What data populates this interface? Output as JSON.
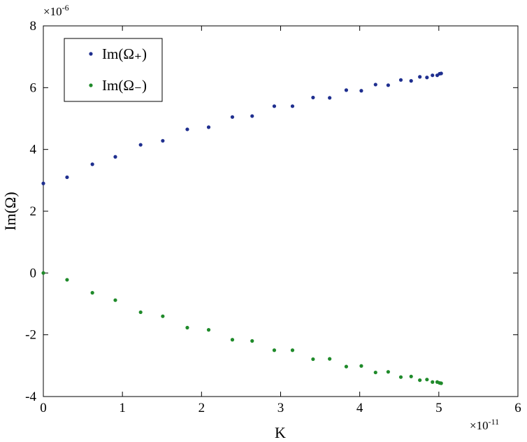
{
  "chart_data": {
    "type": "scatter",
    "title": "",
    "xlabel": "K",
    "ylabel": "Im(Ω)",
    "x_multiplier": "×10",
    "x_exponent": "-11",
    "y_multiplier": "×10",
    "y_exponent": "-6",
    "xlim": [
      0,
      6
    ],
    "ylim": [
      -4,
      8
    ],
    "x_ticks": [
      "0",
      "1",
      "2",
      "3",
      "4",
      "5",
      "6"
    ],
    "y_ticks": [
      "-4",
      "-2",
      "0",
      "2",
      "4",
      "6",
      "8"
    ],
    "x_tick_values": [
      0,
      1,
      2,
      3,
      4,
      5,
      6
    ],
    "y_tick_values": [
      -4,
      -2,
      0,
      2,
      4,
      6,
      8
    ],
    "grid": false,
    "legend_position": "top-left",
    "series": [
      {
        "name": "Im(Ω₊)",
        "color": "#1f2f8f",
        "x": [
          0,
          0.3,
          0.62,
          0.91,
          1.23,
          1.51,
          1.82,
          2.09,
          2.39,
          2.64,
          2.92,
          3.15,
          3.41,
          3.62,
          3.83,
          4.02,
          4.2,
          4.36,
          4.52,
          4.65,
          4.76,
          4.85,
          4.92,
          4.98,
          5.01,
          5.03
        ],
        "y": [
          2.9,
          3.1,
          3.52,
          3.76,
          4.15,
          4.28,
          4.65,
          4.72,
          5.05,
          5.08,
          5.4,
          5.4,
          5.68,
          5.67,
          5.92,
          5.9,
          6.1,
          6.08,
          6.25,
          6.22,
          6.35,
          6.33,
          6.4,
          6.4,
          6.45,
          6.46
        ]
      },
      {
        "name": "Im(Ω₋)",
        "color": "#1f8a2a",
        "x": [
          0,
          0.3,
          0.62,
          0.91,
          1.23,
          1.51,
          1.82,
          2.09,
          2.39,
          2.64,
          2.92,
          3.15,
          3.41,
          3.62,
          3.83,
          4.02,
          4.2,
          4.36,
          4.52,
          4.65,
          4.76,
          4.85,
          4.92,
          4.98,
          5.01,
          5.03
        ],
        "y": [
          0,
          -0.22,
          -0.64,
          -0.88,
          -1.27,
          -1.4,
          -1.77,
          -1.84,
          -2.16,
          -2.2,
          -2.5,
          -2.5,
          -2.79,
          -2.78,
          -3.03,
          -3.01,
          -3.22,
          -3.2,
          -3.37,
          -3.35,
          -3.47,
          -3.45,
          -3.53,
          -3.53,
          -3.56,
          -3.57
        ]
      }
    ]
  }
}
